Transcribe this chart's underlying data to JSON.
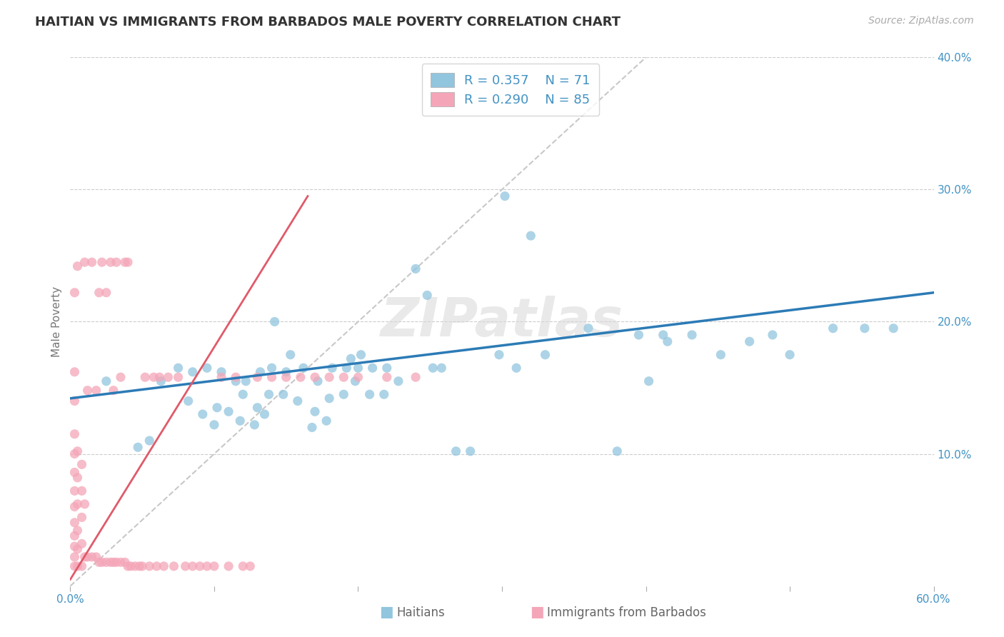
{
  "title": "HAITIAN VS IMMIGRANTS FROM BARBADOS MALE POVERTY CORRELATION CHART",
  "source": "Source: ZipAtlas.com",
  "ylabel": "Male Poverty",
  "xlim": [
    0.0,
    0.6
  ],
  "ylim": [
    0.0,
    0.4
  ],
  "legend_r1": "R = 0.357",
  "legend_n1": "N = 71",
  "legend_r2": "R = 0.290",
  "legend_n2": "N = 85",
  "color_blue": "#92c5de",
  "color_pink": "#f4a6b8",
  "color_blue_line": "#2c7bb6",
  "color_pink_line": "#e05a6a",
  "color_axis_text": "#4393c3",
  "color_grid": "#cccccc",
  "watermark": "ZIPatlas",
  "blue_x": [
    0.025,
    0.047,
    0.055,
    0.063,
    0.075,
    0.082,
    0.085,
    0.092,
    0.095,
    0.1,
    0.102,
    0.105,
    0.11,
    0.115,
    0.118,
    0.12,
    0.122,
    0.128,
    0.13,
    0.132,
    0.135,
    0.138,
    0.14,
    0.142,
    0.148,
    0.15,
    0.153,
    0.158,
    0.162,
    0.168,
    0.17,
    0.172,
    0.178,
    0.18,
    0.182,
    0.19,
    0.192,
    0.195,
    0.198,
    0.2,
    0.202,
    0.208,
    0.21,
    0.218,
    0.22,
    0.228,
    0.24,
    0.248,
    0.252,
    0.258,
    0.268,
    0.278,
    0.298,
    0.302,
    0.31,
    0.32,
    0.33,
    0.36,
    0.38,
    0.402,
    0.412,
    0.432,
    0.452,
    0.472,
    0.5,
    0.53,
    0.552,
    0.572,
    0.488,
    0.415,
    0.395
  ],
  "blue_y": [
    0.155,
    0.105,
    0.11,
    0.155,
    0.165,
    0.14,
    0.162,
    0.13,
    0.165,
    0.122,
    0.135,
    0.162,
    0.132,
    0.155,
    0.125,
    0.145,
    0.155,
    0.122,
    0.135,
    0.162,
    0.13,
    0.145,
    0.165,
    0.2,
    0.145,
    0.162,
    0.175,
    0.14,
    0.165,
    0.12,
    0.132,
    0.155,
    0.125,
    0.142,
    0.165,
    0.145,
    0.165,
    0.172,
    0.155,
    0.165,
    0.175,
    0.145,
    0.165,
    0.145,
    0.165,
    0.155,
    0.24,
    0.22,
    0.165,
    0.165,
    0.102,
    0.102,
    0.175,
    0.295,
    0.165,
    0.265,
    0.175,
    0.195,
    0.102,
    0.155,
    0.19,
    0.19,
    0.175,
    0.185,
    0.175,
    0.195,
    0.195,
    0.195,
    0.19,
    0.185,
    0.19
  ],
  "pink_x": [
    0.003,
    0.003,
    0.003,
    0.003,
    0.003,
    0.003,
    0.003,
    0.003,
    0.003,
    0.003,
    0.003,
    0.003,
    0.003,
    0.005,
    0.005,
    0.005,
    0.005,
    0.005,
    0.005,
    0.005,
    0.008,
    0.008,
    0.008,
    0.008,
    0.008,
    0.01,
    0.01,
    0.01,
    0.012,
    0.012,
    0.015,
    0.015,
    0.018,
    0.018,
    0.02,
    0.02,
    0.022,
    0.022,
    0.025,
    0.025,
    0.028,
    0.028,
    0.03,
    0.03,
    0.032,
    0.032,
    0.035,
    0.035,
    0.038,
    0.038,
    0.04,
    0.04,
    0.042,
    0.045,
    0.048,
    0.05,
    0.052,
    0.055,
    0.058,
    0.06,
    0.062,
    0.065,
    0.068,
    0.072,
    0.075,
    0.08,
    0.085,
    0.09,
    0.095,
    0.1,
    0.105,
    0.11,
    0.115,
    0.12,
    0.125,
    0.13,
    0.14,
    0.15,
    0.16,
    0.17,
    0.18,
    0.19,
    0.2,
    0.22,
    0.24
  ],
  "pink_y": [
    0.015,
    0.022,
    0.03,
    0.038,
    0.048,
    0.06,
    0.072,
    0.086,
    0.1,
    0.115,
    0.14,
    0.162,
    0.222,
    0.015,
    0.028,
    0.042,
    0.062,
    0.082,
    0.102,
    0.242,
    0.015,
    0.032,
    0.052,
    0.072,
    0.092,
    0.022,
    0.062,
    0.245,
    0.022,
    0.148,
    0.022,
    0.245,
    0.022,
    0.148,
    0.018,
    0.222,
    0.018,
    0.245,
    0.018,
    0.222,
    0.018,
    0.245,
    0.018,
    0.148,
    0.018,
    0.245,
    0.018,
    0.158,
    0.018,
    0.245,
    0.015,
    0.245,
    0.015,
    0.015,
    0.015,
    0.015,
    0.158,
    0.015,
    0.158,
    0.015,
    0.158,
    0.015,
    0.158,
    0.015,
    0.158,
    0.015,
    0.015,
    0.015,
    0.015,
    0.015,
    0.158,
    0.015,
    0.158,
    0.015,
    0.015,
    0.158,
    0.158,
    0.158,
    0.158,
    0.158,
    0.158,
    0.158,
    0.158,
    0.158,
    0.158
  ],
  "blue_trend_x": [
    0.0,
    0.6
  ],
  "blue_trend_y": [
    0.142,
    0.222
  ],
  "pink_trend_x": [
    0.0,
    0.165
  ],
  "pink_trend_y": [
    0.005,
    0.295
  ],
  "ref_line_x": [
    0.0,
    0.4
  ],
  "ref_line_y": [
    0.0,
    0.4
  ]
}
